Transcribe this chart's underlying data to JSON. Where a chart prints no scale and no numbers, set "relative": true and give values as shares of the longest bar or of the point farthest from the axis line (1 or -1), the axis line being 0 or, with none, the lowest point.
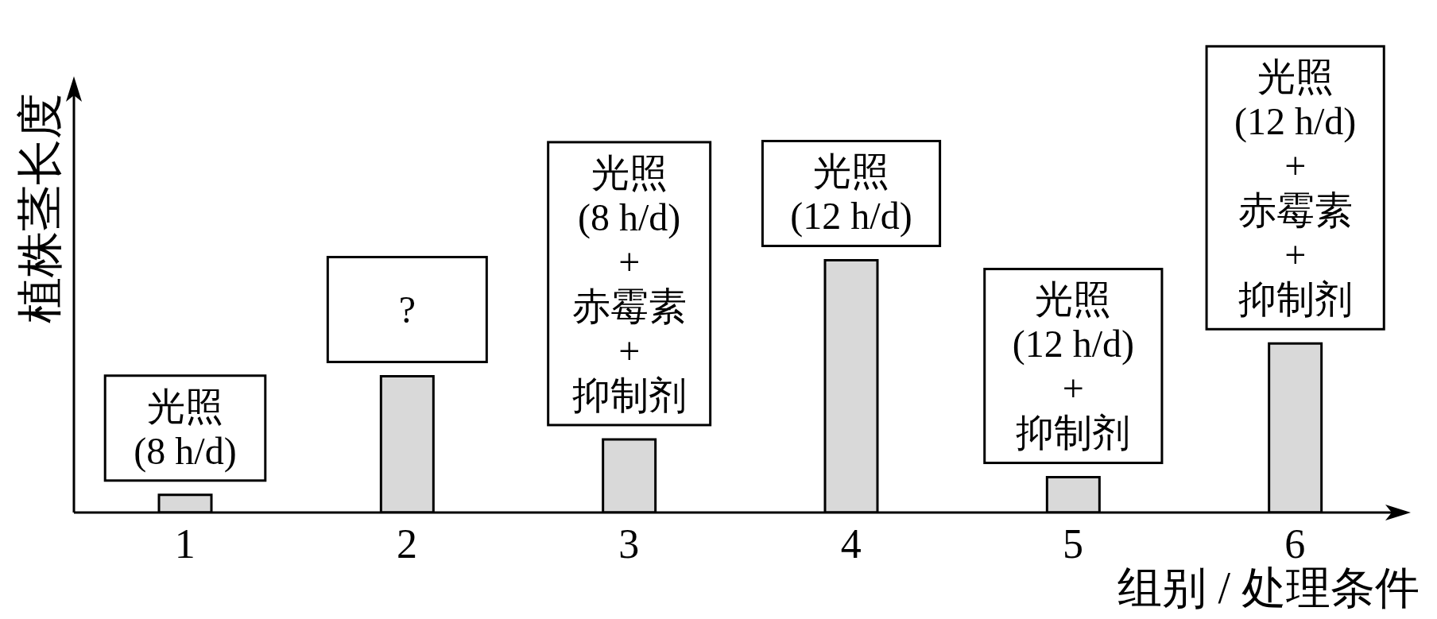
{
  "chart_data": {
    "type": "bar",
    "relative": true,
    "categories": [
      "1",
      "2",
      "3",
      "4",
      "5",
      "6"
    ],
    "values": [
      0.07,
      0.54,
      0.29,
      1,
      0.14,
      0.67
    ],
    "color": "#d9d9d9",
    "xlabel": "组别 / 处理条件",
    "ylabel": "植株茎长度",
    "annotations": [
      "光照\n(8 h/d)",
      "?",
      "光照\n(8 h/d)\n+\n赤霉素\n+\n抑制剂",
      "光照\n(12 h/d)",
      "光照\n(12 h/d)\n+\n抑制剂",
      "光照\n(12 h/d)\n+\n赤霉素\n+\n抑制剂"
    ]
  }
}
